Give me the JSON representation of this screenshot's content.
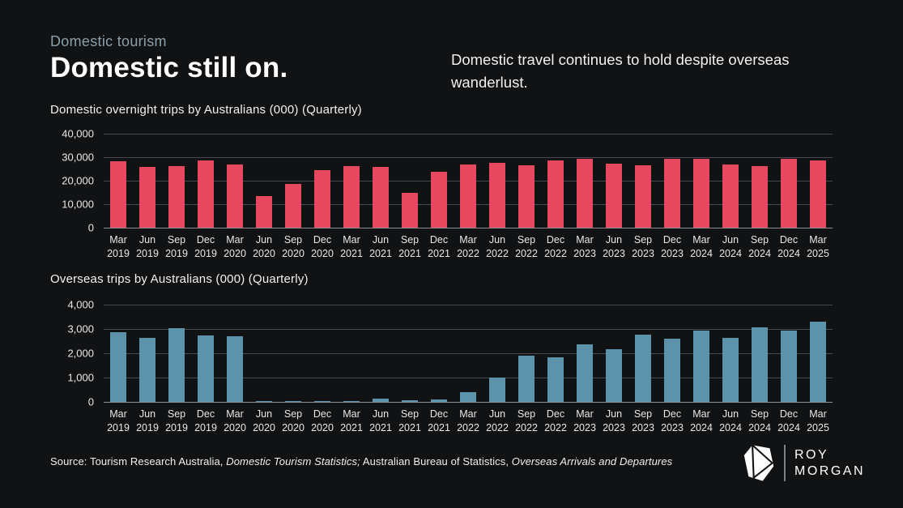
{
  "header": {
    "eyebrow": "Domestic tourism",
    "title": "Domestic still on.",
    "subtitle": "Domestic travel continues to hold despite overseas wanderlust."
  },
  "colors": {
    "background": "#101214",
    "domestic_bar": "#e5485f",
    "overseas_bar": "#5d92ab",
    "gridline": "#45494d",
    "zero_line": "#8d9196",
    "eyebrow_text": "#8ca0ac",
    "axis_text": "#e8e8e8"
  },
  "chart_data": [
    {
      "type": "bar",
      "title": "Domestic overnight trips by Australians (000) (Quarterly)",
      "categories": [
        "Mar 2019",
        "Jun 2019",
        "Sep 2019",
        "Dec 2019",
        "Mar 2020",
        "Jun 2020",
        "Sep 2020",
        "Dec 2020",
        "Mar 2021",
        "Jun 2021",
        "Sep 2021",
        "Dec 2021",
        "Mar 2022",
        "Jun 2022",
        "Sep 2022",
        "Dec 2022",
        "Mar 2023",
        "Jun 2023",
        "Sep 2023",
        "Dec 2023",
        "Mar 2024",
        "Jun 2024",
        "Sep 2024",
        "Dec 2024",
        "Mar 2025"
      ],
      "values": [
        28200,
        25900,
        26200,
        28600,
        27000,
        13400,
        18500,
        24500,
        26300,
        25800,
        14800,
        23700,
        27000,
        27600,
        26700,
        28700,
        29300,
        27300,
        26600,
        29200,
        29300,
        27000,
        26300,
        29300,
        28500
      ],
      "xlabel": "",
      "ylabel": "",
      "ylim": [
        0,
        40000
      ],
      "yticks": [
        0,
        10000,
        20000,
        30000,
        40000
      ],
      "grid": true,
      "legend": "none",
      "bar_color": "#e5485f"
    },
    {
      "type": "bar",
      "title": "Overseas trips by Australians (000) (Quarterly)",
      "categories": [
        "Mar 2019",
        "Jun 2019",
        "Sep 2019",
        "Dec 2019",
        "Mar 2020",
        "Jun 2020",
        "Sep 2020",
        "Dec 2020",
        "Mar 2021",
        "Jun 2021",
        "Sep 2021",
        "Dec 2021",
        "Mar 2022",
        "Jun 2022",
        "Sep 2022",
        "Dec 2022",
        "Mar 2023",
        "Jun 2023",
        "Sep 2023",
        "Dec 2023",
        "Mar 2024",
        "Jun 2024",
        "Sep 2024",
        "Dec 2024",
        "Mar 2025"
      ],
      "values": [
        2880,
        2620,
        3030,
        2740,
        2700,
        40,
        25,
        35,
        35,
        140,
        80,
        85,
        410,
        1000,
        1890,
        1840,
        2370,
        2180,
        2770,
        2600,
        2940,
        2640,
        3070,
        2920,
        3310
      ],
      "xlabel": "",
      "ylabel": "",
      "ylim": [
        0,
        4000
      ],
      "yticks": [
        0,
        1000,
        2000,
        3000,
        4000
      ],
      "grid": true,
      "legend": "none",
      "bar_color": "#5d92ab"
    }
  ],
  "footer": {
    "parts": [
      {
        "text": "Source: Tourism Research Australia, ",
        "italic": false
      },
      {
        "text": "Domestic Tourism Statistics;",
        "italic": true
      },
      {
        "text": " Australian Bureau of Statistics, ",
        "italic": false
      },
      {
        "text": "Overseas Arrivals and Departures",
        "italic": true
      }
    ]
  },
  "logo": {
    "line1": "ROY",
    "line2": "MORGAN"
  }
}
